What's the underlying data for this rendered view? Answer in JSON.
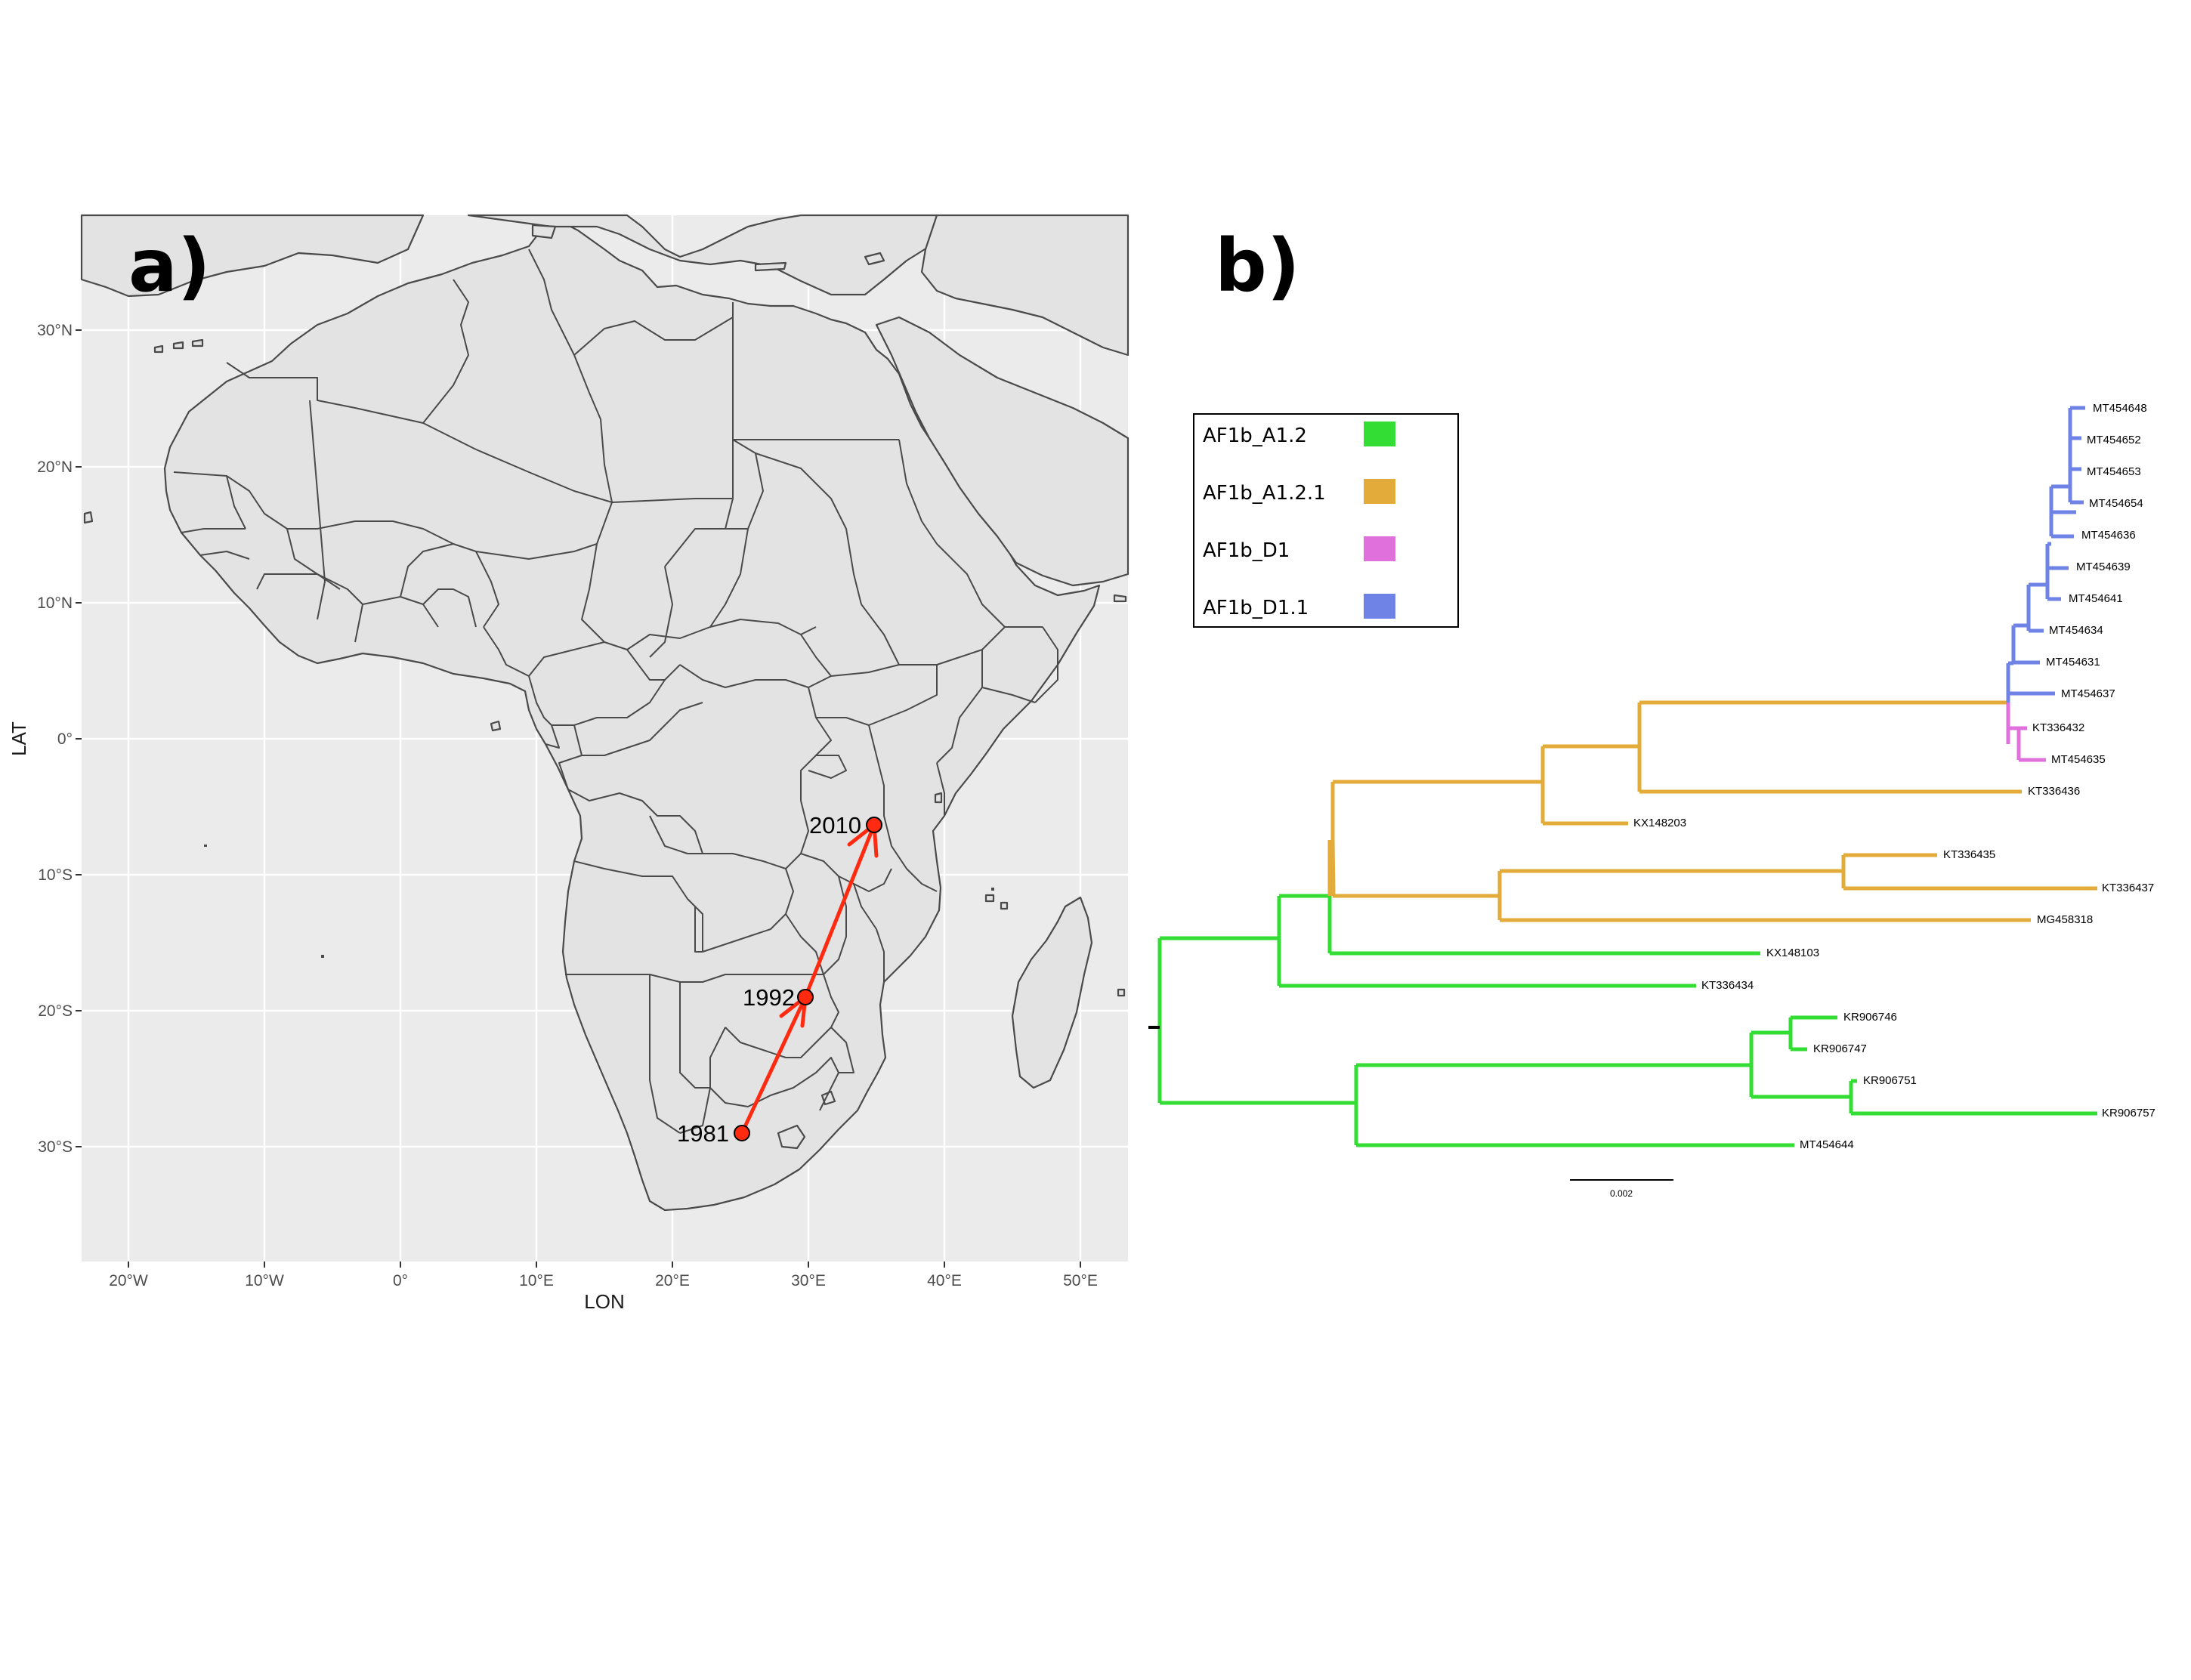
{
  "panel_a": {
    "label": "a)",
    "xlabel": "LON",
    "ylabel": "LAT",
    "xticks": [
      "20°W",
      "10°W",
      "0°",
      "10°E",
      "20°E",
      "30°E",
      "40°E",
      "50°E"
    ],
    "yticks": [
      "30°N",
      "20°N",
      "10°N",
      "0°",
      "10°S",
      "20°S",
      "30°S"
    ],
    "route_color": "#ff2a10",
    "points": [
      {
        "year": "1981"
      },
      {
        "year": "1992"
      },
      {
        "year": "2010"
      }
    ]
  },
  "panel_b": {
    "label": "b)",
    "legend": [
      {
        "name": "AF1b_A1.2",
        "color": "#33dd33"
      },
      {
        "name": "AF1b_A1.2.1",
        "color": "#e2ab3a"
      },
      {
        "name": "AF1b_D1",
        "color": "#e070dc"
      },
      {
        "name": "AF1b_D1.1",
        "color": "#6f82e6"
      }
    ],
    "leaves": [
      "MT454648",
      "MT454652",
      "MT454653",
      "MT454654",
      "MT454636",
      "MT454639",
      "MT454641",
      "MT454634",
      "MT454631",
      "MT454637",
      "KT336432",
      "MT454635",
      "KT336436",
      "KX148203",
      "KT336435",
      "KT336437",
      "MG458318",
      "KX148103",
      "KT336434",
      "KR906746",
      "KR906747",
      "KR906751",
      "KR906757",
      "MT454644"
    ],
    "scale_label": "0.002"
  }
}
